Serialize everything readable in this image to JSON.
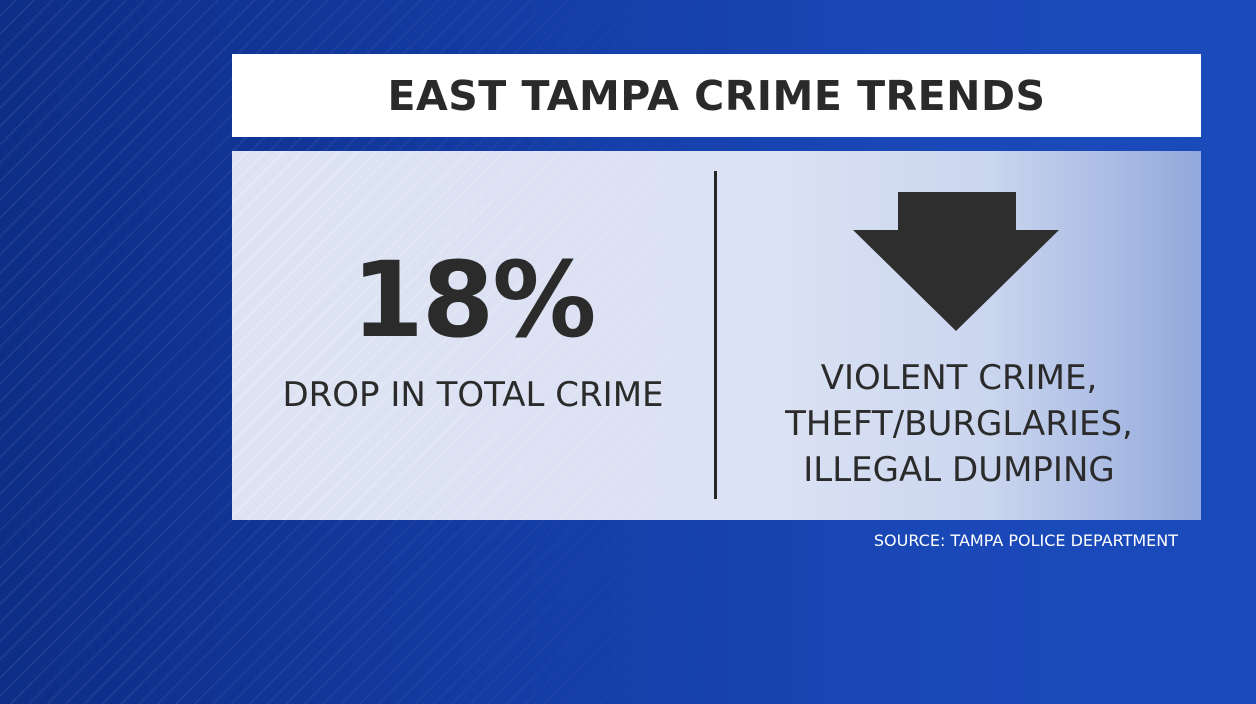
{
  "graphic": {
    "title": "EAST TAMPA CRIME TRENDS",
    "left": {
      "stat": "18%",
      "label": "DROP IN TOTAL CRIME"
    },
    "right": {
      "icon": "down-arrow-icon",
      "lines": [
        "VIOLENT CRIME,",
        "THEFT/BURGLARIES,",
        "ILLEGAL DUMPING"
      ]
    },
    "source": "SOURCE: TAMPA POLICE DEPARTMENT"
  },
  "colors": {
    "background": "#1a44b3",
    "panel": "#dbe2f3",
    "text": "#2b2b2b",
    "title_bar": "#ffffff"
  }
}
